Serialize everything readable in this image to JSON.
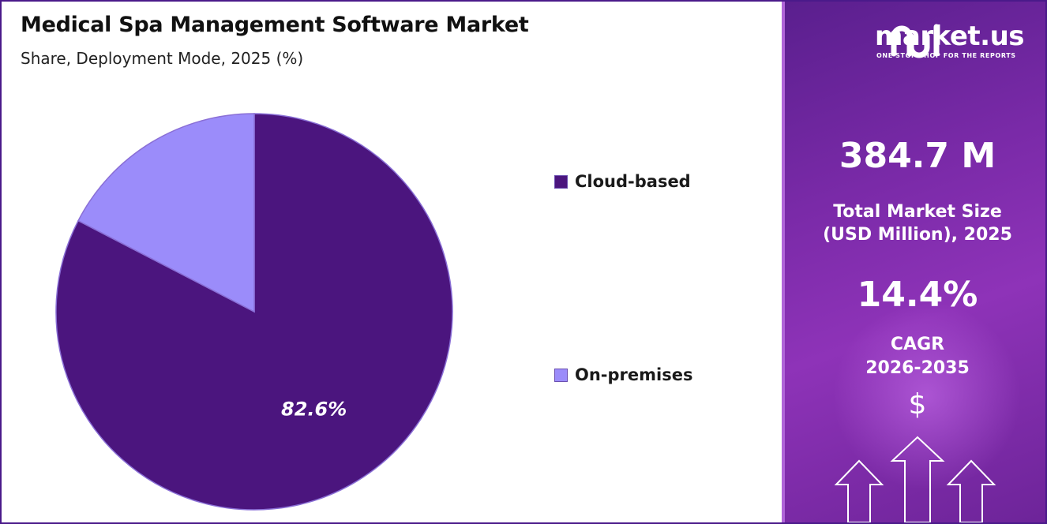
{
  "header": {
    "title": "Medical Spa Management  Software Market",
    "subtitle": "Share, Deployment Mode, 2025 (%)"
  },
  "chart_data": {
    "type": "pie",
    "title": "Medical Spa Management  Software Market",
    "subtitle": "Share, Deployment Mode, 2025 (%)",
    "categories": [
      "Cloud-based",
      "On-premises"
    ],
    "values": [
      82.6,
      17.4
    ],
    "data_labels": [
      "82.6%",
      ""
    ],
    "colors": [
      "#4b157e",
      "#9b8cfa"
    ],
    "legend_position": "right"
  },
  "legend": {
    "items": [
      {
        "label": "Cloud-based",
        "color": "#4b157e"
      },
      {
        "label": "On-premises",
        "color": "#9b8cfa"
      }
    ]
  },
  "sidebar": {
    "brand_name": "market.us",
    "brand_tagline": "ONE STOP SHOP FOR THE REPORTS",
    "market_size_value": "384.7 M",
    "market_size_label_line1": "Total Market Size",
    "market_size_label_line2": "(USD Million), 2025",
    "cagr_value": "14.4%",
    "cagr_label_line1": "CAGR",
    "cagr_label_line2": "2026-2035",
    "currency_symbol": "$",
    "icons": [
      "market-us-logo-icon",
      "dollar-icon",
      "up-arrow-icon"
    ]
  }
}
